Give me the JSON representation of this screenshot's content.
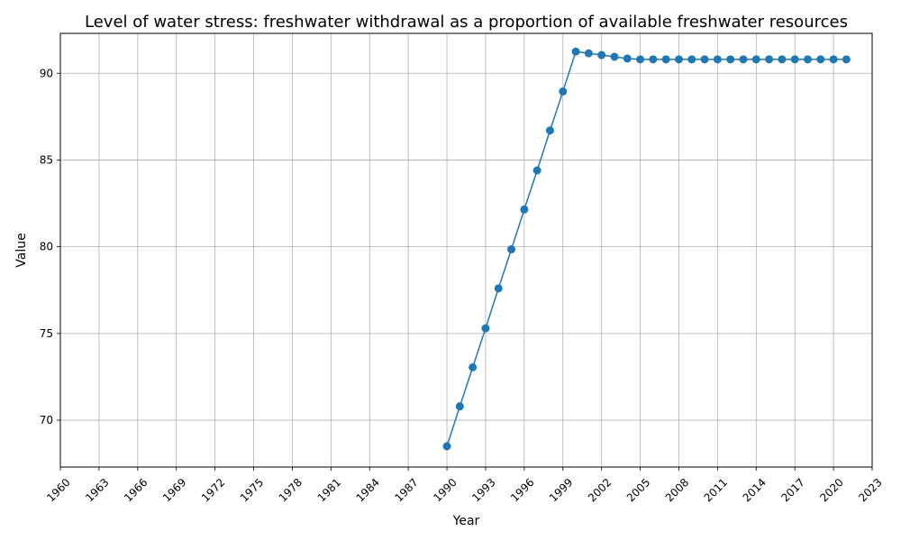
{
  "chart_data": {
    "type": "line",
    "title": "Level of water stress: freshwater withdrawal as a proportion of available freshwater resources",
    "xlabel": "Year",
    "ylabel": "Value",
    "xlim": [
      1960,
      2023
    ],
    "ylim": [
      67.3,
      92.3
    ],
    "x_ticks": [
      1960,
      1963,
      1966,
      1969,
      1972,
      1975,
      1978,
      1981,
      1984,
      1987,
      1990,
      1993,
      1996,
      1999,
      2002,
      2005,
      2008,
      2011,
      2014,
      2017,
      2020,
      2023
    ],
    "y_ticks": [
      70,
      75,
      80,
      85,
      90
    ],
    "grid": true,
    "line_color": "#1f77b4",
    "marker": "circle",
    "x": [
      1990,
      1991,
      1992,
      1993,
      1994,
      1995,
      1996,
      1997,
      1998,
      1999,
      2000,
      2001,
      2002,
      2003,
      2004,
      2005,
      2006,
      2007,
      2008,
      2009,
      2010,
      2011,
      2012,
      2013,
      2014,
      2015,
      2016,
      2017,
      2018,
      2019,
      2020,
      2021
    ],
    "values": [
      68.5,
      70.8,
      73.05,
      75.3,
      77.6,
      79.85,
      82.15,
      84.4,
      86.7,
      88.95,
      91.25,
      91.15,
      91.05,
      90.95,
      90.85,
      90.8,
      90.8,
      90.8,
      90.8,
      90.8,
      90.8,
      90.8,
      90.8,
      90.8,
      90.8,
      90.8,
      90.8,
      90.8,
      90.8,
      90.8,
      90.8,
      90.8
    ]
  }
}
